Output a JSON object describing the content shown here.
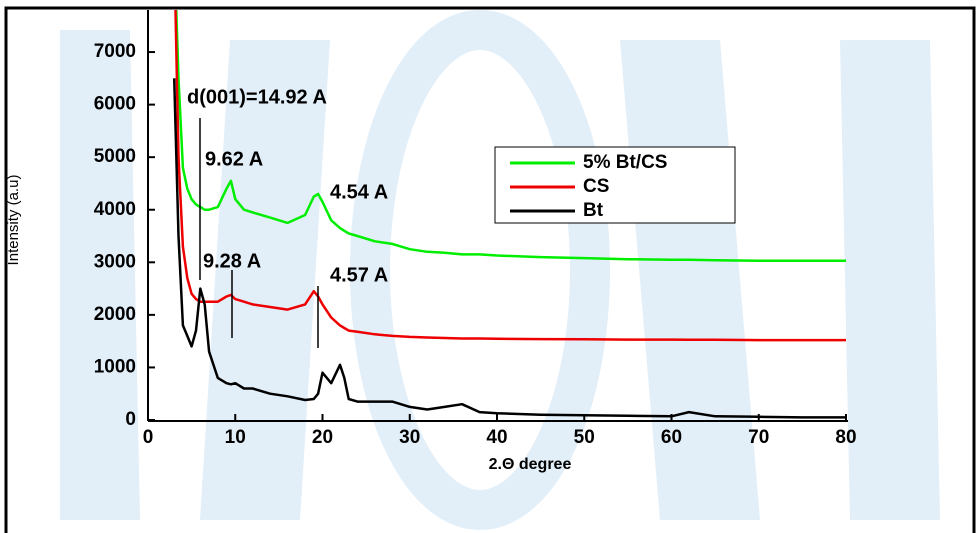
{
  "chart_data": {
    "type": "line",
    "x_label": "2.Θ degree",
    "y_label": "Intensity (a.u)",
    "x": [
      3,
      3.5,
      4,
      4.5,
      5,
      5.5,
      6,
      6.5,
      7,
      8,
      9,
      9.5,
      10,
      11,
      12,
      14,
      16,
      18,
      19,
      19.5,
      20,
      21,
      22,
      22.5,
      23,
      24,
      26,
      28,
      30,
      32,
      34,
      36,
      38,
      40,
      45,
      50,
      55,
      60,
      62,
      65,
      70,
      75,
      80
    ],
    "series": [
      {
        "name": "5% Bt/CS",
        "color": "#00ee00",
        "values": [
          9000,
          6500,
          4800,
          4400,
          4200,
          4100,
          4050,
          4000,
          4000,
          4050,
          4400,
          4550,
          4200,
          4000,
          3950,
          3850,
          3750,
          3900,
          4250,
          4300,
          4150,
          3800,
          3650,
          3600,
          3550,
          3500,
          3400,
          3350,
          3250,
          3200,
          3180,
          3150,
          3150,
          3130,
          3100,
          3080,
          3060,
          3050,
          3050,
          3040,
          3030,
          3030,
          3030
        ]
      },
      {
        "name": "CS",
        "color": "#ee0000",
        "values": [
          9000,
          5000,
          3300,
          2700,
          2400,
          2300,
          2250,
          2250,
          2250,
          2250,
          2350,
          2380,
          2300,
          2250,
          2200,
          2150,
          2100,
          2200,
          2450,
          2350,
          2200,
          1950,
          1800,
          1750,
          1700,
          1680,
          1630,
          1600,
          1580,
          1570,
          1560,
          1550,
          1550,
          1545,
          1540,
          1535,
          1530,
          1530,
          1525,
          1525,
          1520,
          1520,
          1520
        ]
      },
      {
        "name": "Bt",
        "color": "#000000",
        "values": [
          6500,
          3500,
          1800,
          1600,
          1400,
          1700,
          2500,
          2200,
          1300,
          800,
          700,
          680,
          700,
          600,
          600,
          500,
          450,
          380,
          400,
          500,
          900,
          700,
          1050,
          800,
          400,
          350,
          350,
          350,
          250,
          200,
          250,
          300,
          150,
          130,
          100,
          90,
          80,
          70,
          150,
          70,
          60,
          50,
          50
        ]
      }
    ],
    "annotations": [
      "d(001)=14.92 A",
      "9.62 A",
      "4.54 A",
      "9.28 A",
      "4.57 A"
    ],
    "xlim": [
      0,
      80
    ],
    "xticks": [
      0,
      10,
      20,
      30,
      40,
      50,
      60,
      70,
      80
    ],
    "ylim": [
      0,
      7800
    ],
    "yticks": [
      0,
      1000,
      2000,
      3000,
      4000,
      5000,
      6000,
      7000
    ],
    "grid": false,
    "legend": "upper right"
  }
}
